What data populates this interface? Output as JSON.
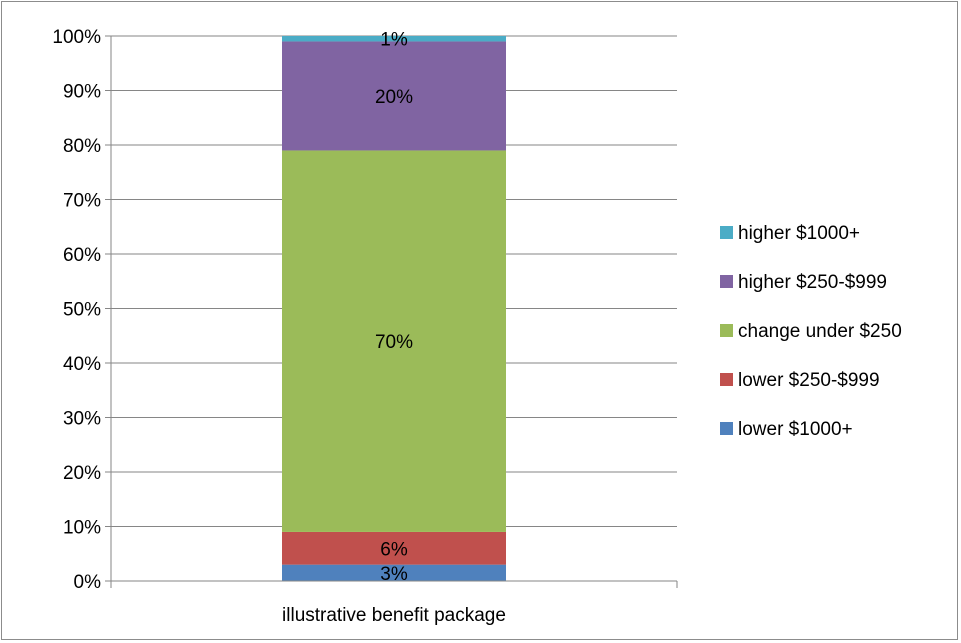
{
  "chart_data": {
    "type": "bar",
    "stacked": true,
    "percent": true,
    "categories": [
      "illustrative benefit package"
    ],
    "series": [
      {
        "name": "lower $1000+",
        "values": [
          3
        ],
        "label": "3%",
        "color": "#4f81bd"
      },
      {
        "name": "lower $250-$999",
        "values": [
          6
        ],
        "label": "6%",
        "color": "#c0504d"
      },
      {
        "name": "change under $250",
        "values": [
          70
        ],
        "label": "70%",
        "color": "#9bbb59"
      },
      {
        "name": "higher $250-$999",
        "values": [
          20
        ],
        "label": "20%",
        "color": "#8064a2"
      },
      {
        "name": "higher $1000+",
        "values": [
          1
        ],
        "label": "1%",
        "color": "#4bacc6"
      }
    ],
    "ylim": [
      0,
      100
    ],
    "yticks": [
      "0%",
      "10%",
      "20%",
      "30%",
      "40%",
      "50%",
      "60%",
      "70%",
      "80%",
      "90%",
      "100%"
    ],
    "grid": true,
    "legend_position": "right",
    "legend_order": [
      "higher $1000+",
      "higher $250-$999",
      "change under $250",
      "lower $250-$999",
      "lower $1000+"
    ]
  }
}
